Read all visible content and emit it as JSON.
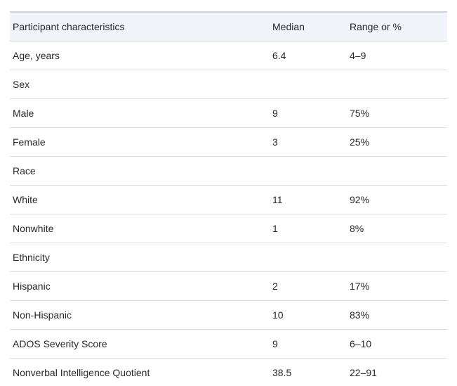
{
  "colors": {
    "header_background": "#f1f4f8",
    "top_border": "#ccd3dd",
    "row_divider": "#d9dce1",
    "text": "#26292e",
    "page_background": "#ffffff"
  },
  "table": {
    "columns": [
      "Participant characteristics",
      "Median",
      "Range or %"
    ],
    "rows": [
      {
        "label": "Age, years",
        "median": "6.4",
        "range": "4–9"
      },
      {
        "label": "Sex",
        "median": "",
        "range": ""
      },
      {
        "label": "Male",
        "median": "9",
        "range": "75%"
      },
      {
        "label": "Female",
        "median": "3",
        "range": "25%"
      },
      {
        "label": "Race",
        "median": "",
        "range": ""
      },
      {
        "label": "White",
        "median": "11",
        "range": "92%"
      },
      {
        "label": "Nonwhite",
        "median": "1",
        "range": "8%"
      },
      {
        "label": "Ethnicity",
        "median": "",
        "range": ""
      },
      {
        "label": "Hispanic",
        "median": "2",
        "range": "17%"
      },
      {
        "label": "Non-Hispanic",
        "median": "10",
        "range": "83%"
      },
      {
        "label": "ADOS Severity Score",
        "median": "9",
        "range": "6–10"
      },
      {
        "label": "Nonverbal Intelligence Quotient",
        "median": "38.5",
        "range": "22–91"
      }
    ]
  }
}
